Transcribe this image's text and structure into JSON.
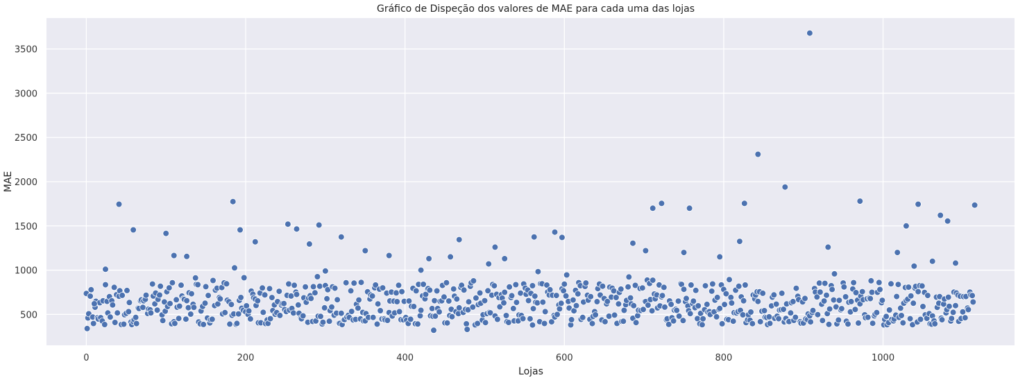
{
  "chart_data": {
    "type": "scatter",
    "title": "Gráfico de Dispeção dos valores de MAE para cada uma das lojas",
    "xlabel": "Lojas",
    "ylabel": "MAE",
    "xlim": [
      -50,
      1165
    ],
    "ylim": [
      150,
      3850
    ],
    "x_ticks": [
      0,
      200,
      400,
      600,
      800,
      1000
    ],
    "y_ticks": [
      500,
      1000,
      1500,
      2000,
      2500,
      3000,
      3500
    ],
    "grid": true,
    "background": "#eaeaf2",
    "point_color": "#4c72b0",
    "series": [
      {
        "x": [
          1,
          10,
          24,
          41,
          59,
          100,
          110,
          126,
          184,
          193,
          212,
          253,
          264,
          280,
          292,
          320,
          350,
          380,
          430,
          457,
          468,
          513,
          525,
          562,
          588,
          597,
          686,
          711,
          722,
          757,
          820,
          826,
          843,
          877,
          908,
          931,
          971,
          985,
          1018,
          1029,
          1039,
          1044,
          1062,
          1072,
          1081,
          1091,
          1115,
          300,
          420,
          436,
          478,
          505,
          560,
          702,
          750,
          795
        ],
        "y": [
          340,
          620,
          1010,
          1745,
          1455,
          1415,
          1165,
          1155,
          1775,
          1455,
          1320,
          1520,
          1465,
          1295,
          1510,
          1375,
          1220,
          1165,
          1130,
          1150,
          1345,
          1260,
          1130,
          1375,
          1430,
          1370,
          1305,
          1700,
          1755,
          1700,
          1325,
          1755,
          2310,
          1940,
          3680,
          1260,
          1780,
          880,
          1200,
          1500,
          1045,
          1745,
          1100,
          1620,
          1555,
          1080,
          1735,
          990,
          1000,
          320,
          330,
          1070,
          380,
          1220,
          1200,
          1150
        ]
      }
    ]
  }
}
